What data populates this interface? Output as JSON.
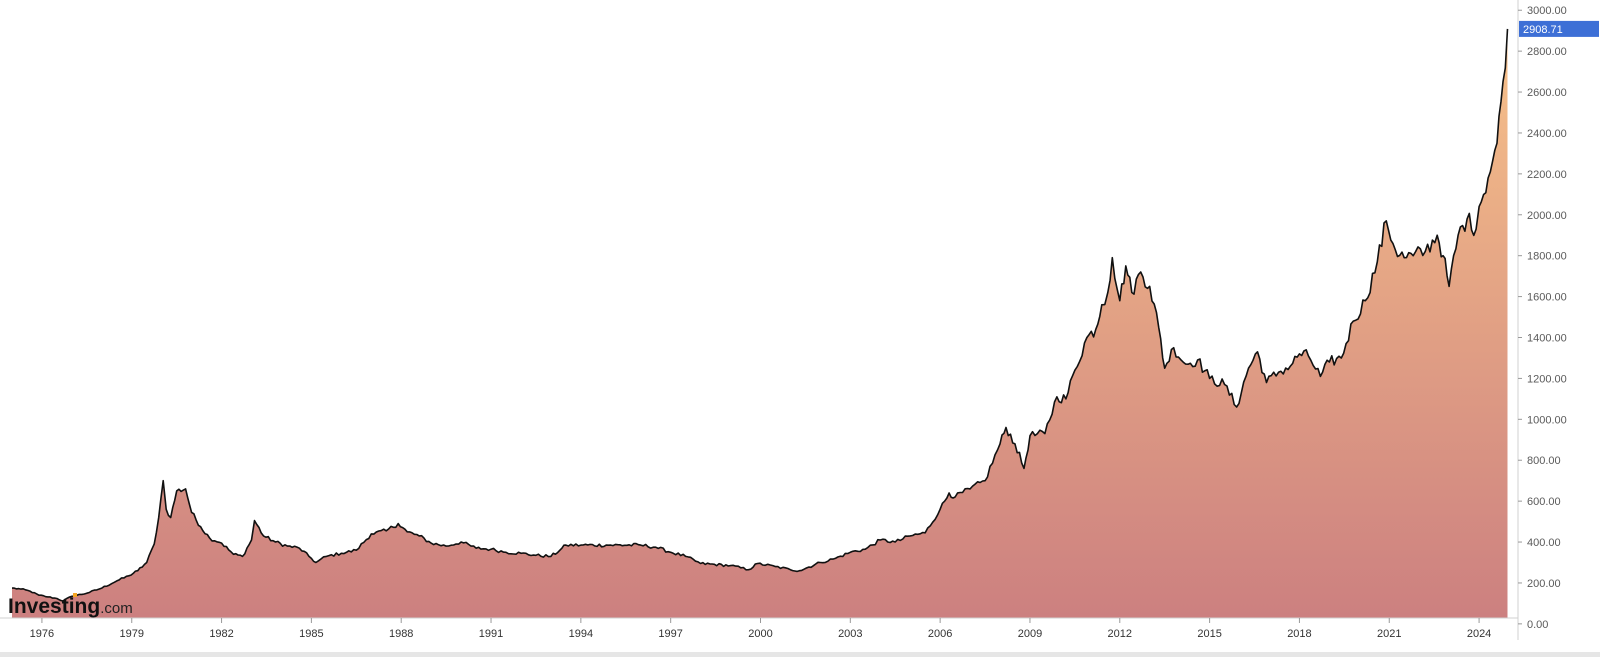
{
  "brand": {
    "logo_main": "Investing",
    "logo_suffix": ".com",
    "accent": "#f6a623"
  },
  "last_price_label": "2908.71",
  "colors": {
    "line": "#111111",
    "fill_top": "#f7c189",
    "fill_bottom": "#cc8080",
    "price_tag": "#3d6fd6",
    "axis": "#d0d0d0",
    "background": "#ffffff"
  },
  "chart_data": {
    "type": "area",
    "title": "",
    "xlabel": "",
    "ylabel": "",
    "ylim": [
      -30,
      3050
    ],
    "xlim": [
      1974.6,
      2025.3
    ],
    "grid": false,
    "y_ticks": [
      0,
      200,
      400,
      600,
      800,
      1000,
      1200,
      1400,
      1600,
      1800,
      2000,
      2200,
      2400,
      2600,
      2800,
      3000
    ],
    "y_tick_labels": [
      "0.00",
      "200.00",
      "400.00",
      "600.00",
      "800.00",
      "1000.00",
      "1200.00",
      "1400.00",
      "1600.00",
      "1800.00",
      "2000.00",
      "2200.00",
      "2400.00",
      "2600.00",
      "2800.00",
      "3000.00"
    ],
    "x_ticks": [
      1976,
      1979,
      1982,
      1985,
      1988,
      1991,
      1994,
      1997,
      2000,
      2003,
      2006,
      2009,
      2012,
      2015,
      2018,
      2021,
      2024
    ],
    "x_tick_labels": [
      "1976",
      "1979",
      "1982",
      "1985",
      "1988",
      "1991",
      "1994",
      "1997",
      "2000",
      "2003",
      "2006",
      "2009",
      "2012",
      "2015",
      "2018",
      "2021",
      "2024"
    ],
    "series": [
      {
        "x": [
          1975.0,
          1975.3,
          1975.6,
          1975.9,
          1976.2,
          1976.5,
          1976.7,
          1977.0,
          1977.5,
          1978.0,
          1978.5,
          1978.9,
          1979.2,
          1979.5,
          1979.75,
          1979.9,
          1980.05,
          1980.15,
          1980.3,
          1980.5,
          1980.8,
          1981.0,
          1981.3,
          1981.6,
          1982.0,
          1982.4,
          1982.7,
          1983.0,
          1983.1,
          1983.4,
          1983.8,
          1984.2,
          1984.6,
          1985.0,
          1985.15,
          1985.5,
          1986.0,
          1986.5,
          1987.0,
          1987.5,
          1987.9,
          1988.2,
          1988.6,
          1989.0,
          1989.5,
          1990.0,
          1990.5,
          1991.0,
          1991.5,
          1992.0,
          1992.5,
          1993.0,
          1993.3,
          1993.5,
          1994.0,
          1995.0,
          1996.0,
          1996.5,
          1997.0,
          1997.5,
          1998.0,
          1999.0,
          1999.6,
          1999.9,
          2000.5,
          2001.0,
          2001.3,
          2002.0,
          2002.5,
          2003.0,
          2003.5,
          2004.0,
          2004.5,
          2005.0,
          2005.5,
          2006.0,
          2006.3,
          2006.5,
          2007.0,
          2007.5,
          2008.0,
          2008.2,
          2008.5,
          2008.8,
          2009.0,
          2009.5,
          2009.9,
          2010.2,
          2010.5,
          2010.9,
          2011.2,
          2011.4,
          2011.6,
          2011.75,
          2012.0,
          2012.2,
          2012.4,
          2012.7,
          2013.0,
          2013.3,
          2013.5,
          2013.8,
          2014.2,
          2014.6,
          2015.0,
          2015.5,
          2015.9,
          2016.3,
          2016.6,
          2016.9,
          2017.3,
          2017.7,
          2018.0,
          2018.3,
          2018.7,
          2019.0,
          2019.4,
          2019.8,
          2020.2,
          2020.6,
          2020.9,
          2021.2,
          2021.5,
          2021.8,
          2022.2,
          2022.6,
          2022.8,
          2023.0,
          2023.3,
          2023.6,
          2023.9,
          2024.0,
          2024.3,
          2024.6,
          2024.8,
          2024.95
        ],
        "y": [
          175,
          170,
          160,
          140,
          132,
          124,
          112,
          135,
          150,
          175,
          210,
          235,
          260,
          300,
          390,
          520,
          700,
          560,
          520,
          650,
          660,
          545,
          475,
          420,
          395,
          340,
          330,
          410,
          505,
          430,
          400,
          380,
          370,
          320,
          300,
          330,
          345,
          360,
          440,
          455,
          490,
          450,
          430,
          395,
          380,
          400,
          370,
          365,
          350,
          345,
          335,
          330,
          360,
          385,
          385,
          385,
          385,
          375,
          350,
          330,
          295,
          285,
          265,
          295,
          280,
          265,
          260,
          300,
          320,
          350,
          365,
          410,
          400,
          430,
          445,
          560,
          640,
          620,
          660,
          700,
          880,
          960,
          880,
          760,
          920,
          930,
          1110,
          1100,
          1240,
          1400,
          1440,
          1560,
          1620,
          1790,
          1580,
          1750,
          1620,
          1720,
          1650,
          1450,
          1250,
          1350,
          1270,
          1290,
          1200,
          1170,
          1060,
          1250,
          1330,
          1180,
          1230,
          1260,
          1320,
          1310,
          1210,
          1280,
          1300,
          1480,
          1580,
          1770,
          1970,
          1830,
          1790,
          1800,
          1820,
          1900,
          1800,
          1650,
          1900,
          1980,
          1930,
          2040,
          2180,
          2350,
          2650,
          2908.71
        ]
      }
    ]
  }
}
